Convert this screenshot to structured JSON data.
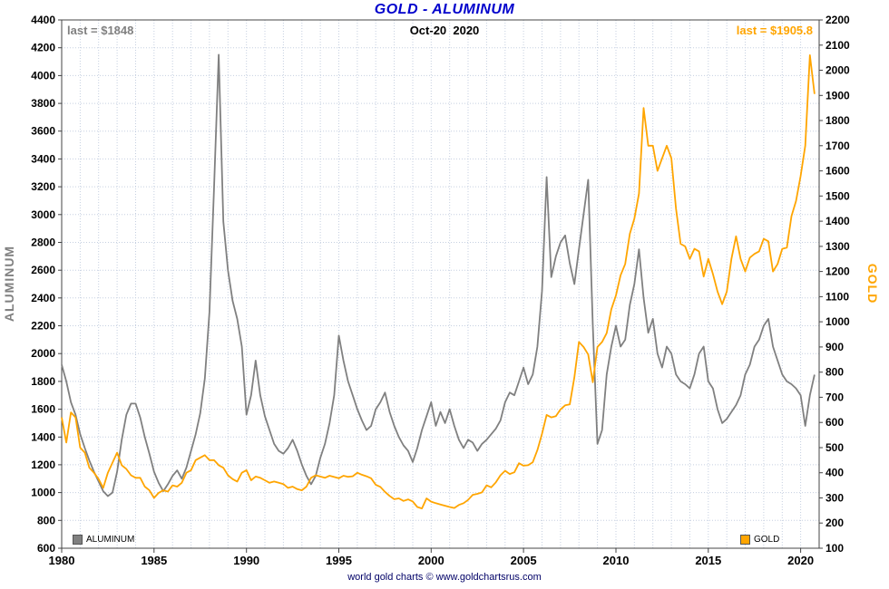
{
  "title": "GOLD - ALUMINUM",
  "subtitle": "Oct-20  2020",
  "annotations": {
    "left_last": "last = $1848",
    "right_last": "last = $1905.8"
  },
  "footer": "world gold charts © www.goldchartsrus.com",
  "colors": {
    "aluminum": "#808080",
    "gold": "#FFA500",
    "title": "#0000CC",
    "grid": "#c5cfe0",
    "border": "#444444",
    "footer": "#000066"
  },
  "chart_data": {
    "type": "line",
    "title": "GOLD - ALUMINUM",
    "subtitle": "Oct-20  2020",
    "x_axis": {
      "min": 1980,
      "max": 2021,
      "tick_step": 5,
      "ticks": [
        1980,
        1985,
        1990,
        1995,
        2000,
        2005,
        2010,
        2015,
        2020
      ]
    },
    "left_axis": {
      "label": "ALUMINUM",
      "min": 600,
      "max": 4400,
      "step": 200
    },
    "right_axis": {
      "label": "GOLD",
      "min": 100,
      "max": 2200,
      "step": 100
    },
    "grid": true,
    "x_start": 1980,
    "x_step": 0.25,
    "series": [
      {
        "name": "ALUMINUM",
        "axis": "left",
        "color": "#808080",
        "last_value": 1848,
        "values": [
          1920,
          1800,
          1650,
          1560,
          1420,
          1320,
          1230,
          1150,
          1080,
          1010,
          975,
          1000,
          1150,
          1380,
          1560,
          1640,
          1640,
          1540,
          1400,
          1280,
          1150,
          1070,
          1010,
          1060,
          1120,
          1160,
          1100,
          1180,
          1300,
          1420,
          1570,
          1820,
          2300,
          3200,
          4150,
          2950,
          2600,
          2380,
          2250,
          2050,
          1560,
          1700,
          1950,
          1700,
          1550,
          1450,
          1350,
          1300,
          1280,
          1320,
          1380,
          1300,
          1200,
          1120,
          1060,
          1120,
          1250,
          1350,
          1500,
          1700,
          2130,
          1950,
          1800,
          1700,
          1600,
          1520,
          1450,
          1480,
          1600,
          1650,
          1720,
          1580,
          1480,
          1400,
          1340,
          1300,
          1220,
          1320,
          1450,
          1550,
          1650,
          1480,
          1580,
          1500,
          1600,
          1480,
          1380,
          1320,
          1380,
          1360,
          1300,
          1350,
          1380,
          1420,
          1460,
          1520,
          1650,
          1720,
          1700,
          1800,
          1900,
          1780,
          1850,
          2050,
          2450,
          3270,
          2550,
          2700,
          2800,
          2850,
          2650,
          2500,
          2750,
          3000,
          3250,
          2200,
          1350,
          1450,
          1850,
          2050,
          2200,
          2050,
          2100,
          2350,
          2500,
          2750,
          2400,
          2150,
          2250,
          2000,
          1900,
          2050,
          2000,
          1850,
          1800,
          1780,
          1750,
          1850,
          2000,
          2050,
          1800,
          1750,
          1600,
          1500,
          1530,
          1580,
          1630,
          1700,
          1850,
          1920,
          2050,
          2100,
          2200,
          2250,
          2050,
          1950,
          1850,
          1800,
          1780,
          1750,
          1700,
          1480,
          1700,
          1848
        ]
      },
      {
        "name": "GOLD",
        "axis": "right",
        "color": "#FFA500",
        "last_value": 1905.8,
        "values": [
          620,
          520,
          640,
          620,
          500,
          480,
          420,
          400,
          375,
          340,
          400,
          440,
          480,
          430,
          415,
          390,
          380,
          380,
          345,
          330,
          300,
          320,
          330,
          325,
          350,
          345,
          360,
          400,
          410,
          450,
          460,
          470,
          450,
          450,
          430,
          420,
          390,
          375,
          365,
          400,
          410,
          370,
          385,
          380,
          370,
          360,
          365,
          360,
          355,
          340,
          345,
          335,
          330,
          345,
          380,
          390,
          385,
          380,
          388,
          383,
          378,
          388,
          384,
          386,
          400,
          392,
          386,
          378,
          352,
          344,
          324,
          308,
          295,
          298,
          288,
          294,
          286,
          264,
          258,
          298,
          285,
          279,
          274,
          269,
          264,
          260,
          272,
          279,
          292,
          312,
          316,
          322,
          350,
          342,
          362,
          390,
          408,
          395,
          402,
          438,
          428,
          430,
          442,
          490,
          555,
          630,
          620,
          625,
          652,
          668,
          672,
          780,
          920,
          900,
          870,
          760,
          900,
          920,
          955,
          1050,
          1105,
          1185,
          1230,
          1350,
          1410,
          1510,
          1850,
          1700,
          1700,
          1600,
          1650,
          1700,
          1650,
          1450,
          1310,
          1300,
          1250,
          1290,
          1280,
          1180,
          1250,
          1190,
          1120,
          1070,
          1120,
          1250,
          1340,
          1250,
          1200,
          1255,
          1270,
          1280,
          1330,
          1320,
          1200,
          1230,
          1290,
          1295,
          1420,
          1480,
          1580,
          1700,
          2060,
          1905.8
        ]
      }
    ],
    "legend": [
      {
        "label": "ALUMINUM",
        "color": "#808080",
        "position": "bottom-left"
      },
      {
        "label": "GOLD",
        "color": "#FFA500",
        "position": "bottom-right"
      }
    ]
  }
}
